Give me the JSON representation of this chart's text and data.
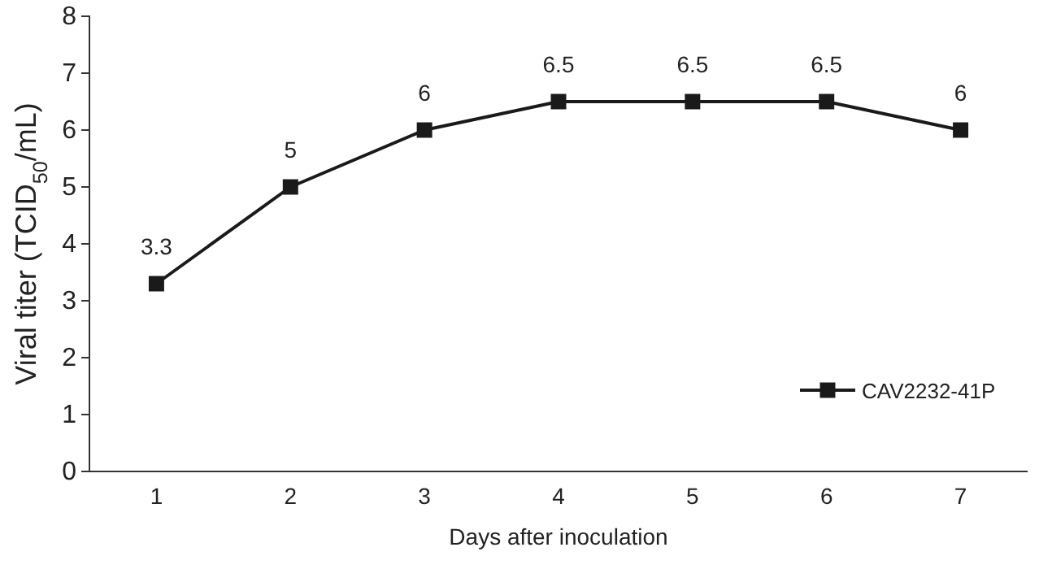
{
  "chart_data": {
    "type": "line",
    "xlabel": "Days after inoculation",
    "ylabel": "Viral titer (TCID$_{50}$/mL)",
    "categories": [
      "1",
      "2",
      "3",
      "4",
      "5",
      "6",
      "7"
    ],
    "series": [
      {
        "name": "CAV2232-41P",
        "color": "#1a1a1a",
        "values": [
          3.3,
          5,
          6,
          6.5,
          6.5,
          6.5,
          6
        ]
      }
    ],
    "ylim": [
      0,
      8
    ],
    "yticks": [
      0,
      1,
      2,
      3,
      4,
      5,
      6,
      7,
      8
    ],
    "data_labels": true,
    "marker": "square",
    "line_style": "solid",
    "legend": "bottom right",
    "grid": false
  }
}
